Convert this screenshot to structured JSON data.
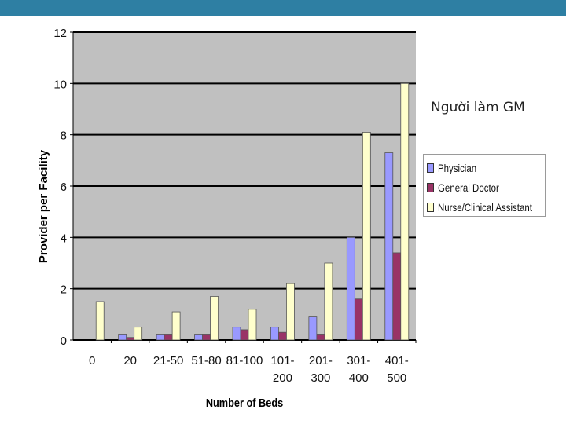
{
  "overlay": {
    "text": "Người làm GM"
  },
  "colors": {
    "header_bar": "#2e7fa3",
    "plot_background": "#c0c0c0",
    "gridline": "#000000"
  },
  "chart_data": {
    "type": "bar",
    "title": "",
    "xlabel": "Number of Beds",
    "ylabel": "Provider per Facility",
    "ylim": [
      0,
      12
    ],
    "yticks": [
      0,
      2,
      4,
      6,
      8,
      10,
      12
    ],
    "grid": true,
    "legend_position": "right",
    "categories": [
      [
        "0"
      ],
      [
        "20"
      ],
      [
        "21-50"
      ],
      [
        "51-80"
      ],
      [
        "81-100"
      ],
      [
        "101-",
        "200"
      ],
      [
        "201-",
        "300"
      ],
      [
        "301-",
        "400"
      ],
      [
        "401-",
        "500"
      ]
    ],
    "series": [
      {
        "name": "Physician",
        "color": "#9999ff",
        "values": [
          0,
          0.2,
          0.2,
          0.2,
          0.5,
          0.5,
          0.9,
          4.0,
          7.3
        ]
      },
      {
        "name": "General Doctor",
        "color": "#993366",
        "values": [
          0,
          0.1,
          0.2,
          0.2,
          0.4,
          0.3,
          0.2,
          1.6,
          3.4
        ]
      },
      {
        "name": "Nurse/Clinical Assistant",
        "color": "#ffffcc",
        "values": [
          1.5,
          0.5,
          1.1,
          1.7,
          1.2,
          2.2,
          3.0,
          8.1,
          10.0
        ]
      }
    ]
  }
}
